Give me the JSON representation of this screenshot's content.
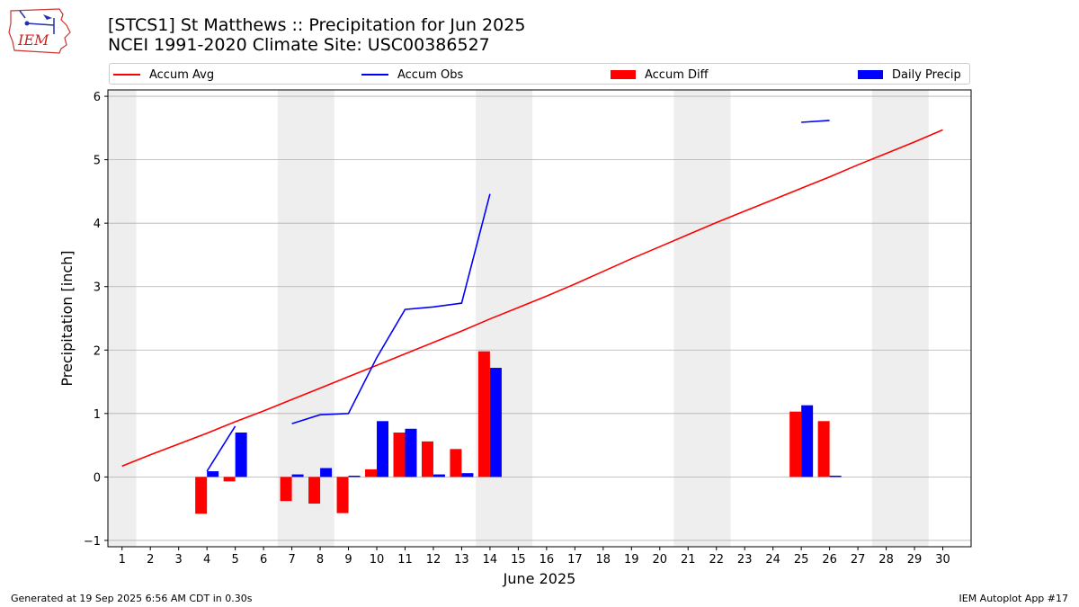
{
  "header": {
    "title_line1": "[STCS1] St Matthews :: Precipitation for Jun 2025",
    "title_line2": "NCEI 1991-2020 Climate Site: USC00386527",
    "logo_text": "IEM"
  },
  "footer": {
    "left": "Generated at 19 Sep 2025 6:56 AM CDT in 0.30s",
    "right": "IEM Autoplot App #17"
  },
  "legend": {
    "items": [
      {
        "label": "Accum Avg",
        "kind": "line",
        "color": "#ff0000"
      },
      {
        "label": "Accum Obs",
        "kind": "line",
        "color": "#0000ff"
      },
      {
        "label": "Accum Diff",
        "kind": "box",
        "color": "#ff0000"
      },
      {
        "label": "Daily Precip",
        "kind": "box",
        "color": "#0000ff"
      }
    ]
  },
  "chart_data": {
    "type": "bar",
    "xlabel": "June 2025",
    "ylabel": "Precipitation [inch]",
    "xlim": [
      0.5,
      31
    ],
    "ylim": [
      -1.1,
      6.1
    ],
    "yticks": [
      -1,
      0,
      1,
      2,
      3,
      4,
      5,
      6
    ],
    "x": [
      1,
      2,
      3,
      4,
      5,
      6,
      7,
      8,
      9,
      10,
      11,
      12,
      13,
      14,
      15,
      16,
      17,
      18,
      19,
      20,
      21,
      22,
      23,
      24,
      25,
      26,
      27,
      28,
      29,
      30
    ],
    "grid": "horizontal",
    "weekend_shading": [
      [
        0.5,
        1.5
      ],
      [
        6.5,
        8.5
      ],
      [
        13.5,
        15.5
      ],
      [
        20.5,
        22.5
      ],
      [
        27.5,
        29.5
      ]
    ],
    "shading_color": "#eeeeee",
    "series": [
      {
        "name": "Accum Avg",
        "kind": "line",
        "color": "#ff0000",
        "values": [
          0.17,
          0.35,
          0.52,
          0.69,
          0.87,
          1.04,
          1.22,
          1.4,
          1.58,
          1.76,
          1.94,
          2.12,
          2.3,
          2.49,
          2.67,
          2.85,
          3.04,
          3.24,
          3.44,
          3.63,
          3.82,
          4.01,
          4.19,
          4.37,
          4.55,
          4.73,
          4.92,
          5.1,
          5.28,
          5.47
        ]
      },
      {
        "name": "Accum Obs",
        "kind": "line",
        "color": "#0000ff",
        "values": [
          null,
          null,
          null,
          0.09,
          0.8,
          null,
          0.84,
          0.98,
          1.0,
          1.88,
          2.64,
          2.68,
          2.74,
          4.46,
          null,
          null,
          null,
          null,
          null,
          null,
          null,
          null,
          null,
          null,
          5.59,
          5.62,
          null,
          null,
          null,
          null
        ]
      },
      {
        "name": "Accum Diff",
        "kind": "bar",
        "color": "#ff0000",
        "values": [
          null,
          null,
          null,
          -0.58,
          -0.07,
          null,
          -0.38,
          -0.42,
          -0.57,
          0.12,
          0.7,
          0.56,
          0.44,
          1.98,
          null,
          null,
          null,
          null,
          null,
          null,
          null,
          null,
          null,
          null,
          1.03,
          0.88,
          null,
          null,
          null,
          null
        ]
      },
      {
        "name": "Daily Precip",
        "kind": "bar",
        "color": "#0000ff",
        "values": [
          null,
          null,
          null,
          0.09,
          0.7,
          null,
          0.04,
          0.14,
          0.02,
          0.88,
          0.76,
          0.04,
          0.06,
          1.72,
          null,
          null,
          null,
          null,
          null,
          null,
          null,
          null,
          null,
          null,
          1.13,
          0.02,
          null,
          null,
          null,
          null
        ]
      }
    ]
  }
}
